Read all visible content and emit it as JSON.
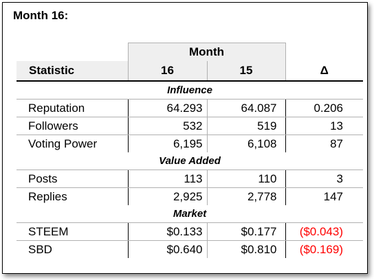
{
  "title": "Month 16:",
  "table": {
    "month_group_label": "Month",
    "headers": {
      "statistic": "Statistic",
      "col1": "16",
      "col2": "15",
      "delta": "Δ"
    },
    "sections": [
      {
        "name": "Influence",
        "rows": [
          {
            "label": "Reputation",
            "v16": "64.293",
            "v15": "64.087",
            "delta": "0.206",
            "negative": false
          },
          {
            "label": "Followers",
            "v16": "532",
            "v15": "519",
            "delta": "13",
            "negative": false
          },
          {
            "label": "Voting Power",
            "v16": "6,195",
            "v15": "6,108",
            "delta": "87",
            "negative": false
          }
        ]
      },
      {
        "name": "Value Added",
        "rows": [
          {
            "label": "Posts",
            "v16": "113",
            "v15": "110",
            "delta": "3",
            "negative": false
          },
          {
            "label": "Replies",
            "v16": "2,925",
            "v15": "2,778",
            "delta": "147",
            "negative": false
          }
        ]
      },
      {
        "name": "Market",
        "rows": [
          {
            "label": "STEEM",
            "v16": "$0.133",
            "v15": "$0.177",
            "delta": "($0.043)",
            "negative": true
          },
          {
            "label": "SBD",
            "v16": "$0.640",
            "v15": "$0.810",
            "delta": "($0.169)",
            "negative": true
          }
        ]
      }
    ],
    "colors": {
      "negative": "#ff0000",
      "header_bg": "#efefef"
    }
  }
}
